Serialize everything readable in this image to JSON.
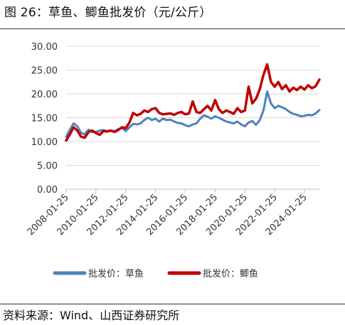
{
  "header": {
    "title": "图 26：草鱼、鲫鱼批发价（元/公斤）"
  },
  "footer": {
    "source": "资料来源：Wind、山西证券研究所"
  },
  "chart_data": {
    "type": "line",
    "title": "",
    "xlabel": "",
    "ylabel": "",
    "ylim": [
      0,
      30
    ],
    "yticks": [
      "0.00",
      "5.00",
      "10.00",
      "15.00",
      "20.00",
      "25.00",
      "30.00"
    ],
    "xlim": [
      "2008-01-25",
      "2025-01-25"
    ],
    "xticks": [
      "2008-01-25",
      "2010-01-25",
      "2012-01-25",
      "2014-01-25",
      "2016-01-25",
      "2018-01-25",
      "2020-01-25",
      "2022-01-25",
      "2024-01-25"
    ],
    "grid": "horizontal",
    "legend": "bottom",
    "series": [
      {
        "name": "批发价：草鱼",
        "color": "#4f81bd",
        "points": [
          [
            "2008-01-25",
            11.0
          ],
          [
            "2008-04-25",
            12.5
          ],
          [
            "2008-07-25",
            13.8
          ],
          [
            "2008-10-25",
            13.2
          ],
          [
            "2009-01-25",
            11.8
          ],
          [
            "2009-04-25",
            11.5
          ],
          [
            "2009-07-25",
            12.5
          ],
          [
            "2009-10-25",
            12.0
          ],
          [
            "2010-01-25",
            12.0
          ],
          [
            "2010-04-25",
            12.3
          ],
          [
            "2010-07-25",
            12.4
          ],
          [
            "2010-10-25",
            12.2
          ],
          [
            "2011-01-25",
            12.3
          ],
          [
            "2011-04-25",
            12.2
          ],
          [
            "2011-07-25",
            12.6
          ],
          [
            "2011-10-25",
            12.8
          ],
          [
            "2012-01-25",
            12.2
          ],
          [
            "2012-04-25",
            13.0
          ],
          [
            "2012-07-25",
            13.7
          ],
          [
            "2012-10-25",
            13.6
          ],
          [
            "2013-01-25",
            13.8
          ],
          [
            "2013-04-25",
            14.5
          ],
          [
            "2013-07-25",
            15.0
          ],
          [
            "2013-10-25",
            14.5
          ],
          [
            "2014-01-25",
            14.8
          ],
          [
            "2014-04-25",
            14.2
          ],
          [
            "2014-07-25",
            14.8
          ],
          [
            "2014-10-25",
            14.5
          ],
          [
            "2015-01-25",
            14.6
          ],
          [
            "2015-04-25",
            14.2
          ],
          [
            "2015-07-25",
            13.9
          ],
          [
            "2015-10-25",
            13.8
          ],
          [
            "2016-01-25",
            13.4
          ],
          [
            "2016-04-25",
            13.2
          ],
          [
            "2016-07-25",
            13.6
          ],
          [
            "2016-10-25",
            13.8
          ],
          [
            "2017-01-25",
            14.8
          ],
          [
            "2017-04-25",
            15.5
          ],
          [
            "2017-07-25",
            15.2
          ],
          [
            "2017-10-25",
            14.8
          ],
          [
            "2018-01-25",
            15.3
          ],
          [
            "2018-04-25",
            15.0
          ],
          [
            "2018-07-25",
            14.6
          ],
          [
            "2018-10-25",
            14.2
          ],
          [
            "2019-01-25",
            14.0
          ],
          [
            "2019-04-25",
            13.8
          ],
          [
            "2019-07-25",
            14.2
          ],
          [
            "2019-10-25",
            13.6
          ],
          [
            "2020-01-25",
            13.2
          ],
          [
            "2020-04-25",
            14.0
          ],
          [
            "2020-07-25",
            14.3
          ],
          [
            "2020-10-25",
            13.5
          ],
          [
            "2021-01-25",
            14.5
          ],
          [
            "2021-04-25",
            16.5
          ],
          [
            "2021-07-25",
            20.5
          ],
          [
            "2021-10-25",
            18.0
          ],
          [
            "2022-01-25",
            17.0
          ],
          [
            "2022-04-25",
            17.5
          ],
          [
            "2022-07-25",
            17.2
          ],
          [
            "2022-10-25",
            16.8
          ],
          [
            "2023-01-25",
            16.2
          ],
          [
            "2023-04-25",
            15.8
          ],
          [
            "2023-07-25",
            15.6
          ],
          [
            "2023-10-25",
            15.3
          ],
          [
            "2024-01-25",
            15.4
          ],
          [
            "2024-04-25",
            15.6
          ],
          [
            "2024-07-25",
            15.5
          ],
          [
            "2024-10-25",
            15.9
          ],
          [
            "2025-01-25",
            16.6
          ]
        ]
      },
      {
        "name": "批发价：鲫鱼",
        "color": "#c00000",
        "points": [
          [
            "2008-01-25",
            10.2
          ],
          [
            "2008-04-25",
            11.5
          ],
          [
            "2008-07-25",
            13.0
          ],
          [
            "2008-10-25",
            12.3
          ],
          [
            "2009-01-25",
            11.0
          ],
          [
            "2009-04-25",
            10.8
          ],
          [
            "2009-07-25",
            12.0
          ],
          [
            "2009-10-25",
            12.3
          ],
          [
            "2010-01-25",
            11.8
          ],
          [
            "2010-04-25",
            11.4
          ],
          [
            "2010-07-25",
            12.2
          ],
          [
            "2010-10-25",
            12.1
          ],
          [
            "2011-01-25",
            12.3
          ],
          [
            "2011-04-25",
            12.0
          ],
          [
            "2011-07-25",
            12.4
          ],
          [
            "2011-10-25",
            13.0
          ],
          [
            "2012-01-25",
            12.8
          ],
          [
            "2012-04-25",
            14.0
          ],
          [
            "2012-07-25",
            16.0
          ],
          [
            "2012-10-25",
            15.5
          ],
          [
            "2013-01-25",
            15.8
          ],
          [
            "2013-04-25",
            16.5
          ],
          [
            "2013-07-25",
            16.2
          ],
          [
            "2013-10-25",
            16.8
          ],
          [
            "2014-01-25",
            17.0
          ],
          [
            "2014-04-25",
            16.0
          ],
          [
            "2014-07-25",
            15.7
          ],
          [
            "2014-10-25",
            15.8
          ],
          [
            "2015-01-25",
            15.9
          ],
          [
            "2015-04-25",
            15.6
          ],
          [
            "2015-07-25",
            16.0
          ],
          [
            "2015-10-25",
            16.2
          ],
          [
            "2016-01-25",
            15.7
          ],
          [
            "2016-04-25",
            15.9
          ],
          [
            "2016-07-25",
            18.4
          ],
          [
            "2016-10-25",
            16.2
          ],
          [
            "2017-01-25",
            16.0
          ],
          [
            "2017-04-25",
            16.8
          ],
          [
            "2017-07-25",
            17.5
          ],
          [
            "2017-10-25",
            16.5
          ],
          [
            "2018-01-25",
            18.7
          ],
          [
            "2018-04-25",
            16.8
          ],
          [
            "2018-07-25",
            16.0
          ],
          [
            "2018-10-25",
            16.5
          ],
          [
            "2019-01-25",
            16.2
          ],
          [
            "2019-04-25",
            15.8
          ],
          [
            "2019-07-25",
            17.0
          ],
          [
            "2019-10-25",
            16.2
          ],
          [
            "2020-01-25",
            16.5
          ],
          [
            "2020-04-25",
            21.5
          ],
          [
            "2020-07-25",
            18.0
          ],
          [
            "2020-10-25",
            19.0
          ],
          [
            "2021-01-25",
            21.0
          ],
          [
            "2021-04-25",
            24.0
          ],
          [
            "2021-07-25",
            26.2
          ],
          [
            "2021-10-25",
            22.5
          ],
          [
            "2022-01-25",
            21.5
          ],
          [
            "2022-04-25",
            22.5
          ],
          [
            "2022-07-25",
            21.0
          ],
          [
            "2022-10-25",
            21.8
          ],
          [
            "2023-01-25",
            20.5
          ],
          [
            "2023-04-25",
            21.3
          ],
          [
            "2023-07-25",
            20.8
          ],
          [
            "2023-10-25",
            21.5
          ],
          [
            "2024-01-25",
            20.9
          ],
          [
            "2024-04-25",
            21.8
          ],
          [
            "2024-07-25",
            21.2
          ],
          [
            "2024-10-25",
            21.6
          ],
          [
            "2025-01-25",
            23.0
          ]
        ]
      }
    ]
  }
}
